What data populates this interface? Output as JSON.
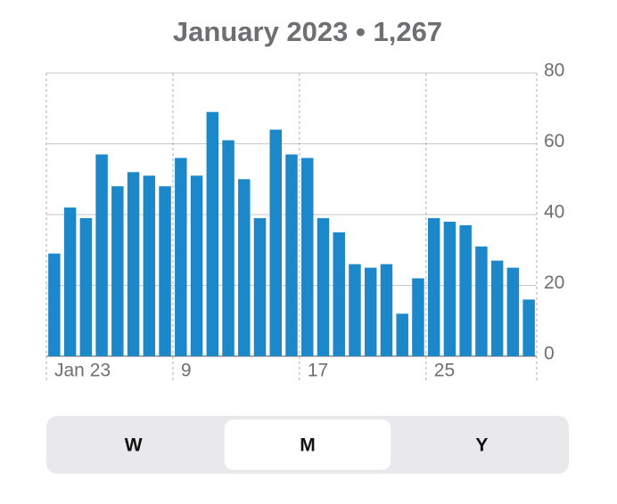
{
  "chart_data": {
    "type": "bar",
    "title": "January 2023 • 1,267",
    "categories": [
      "Jan 23",
      null,
      null,
      null,
      null,
      null,
      null,
      null,
      "9",
      null,
      null,
      null,
      null,
      null,
      null,
      null,
      "17",
      null,
      null,
      null,
      null,
      null,
      null,
      null,
      "25",
      null,
      null,
      null,
      null,
      null,
      null
    ],
    "values": [
      29,
      42,
      39,
      57,
      48,
      52,
      51,
      48,
      56,
      51,
      69,
      61,
      50,
      39,
      64,
      57,
      56,
      39,
      35,
      26,
      25,
      26,
      12,
      22,
      39,
      38,
      37,
      31,
      27,
      25,
      16
    ],
    "color": "#1d88c9",
    "ylim": [
      0,
      80
    ],
    "yticks": [
      0,
      20,
      40,
      60,
      80
    ],
    "grid": true
  },
  "segmented_control": {
    "options": [
      "W",
      "M",
      "Y"
    ],
    "selected": "M"
  }
}
